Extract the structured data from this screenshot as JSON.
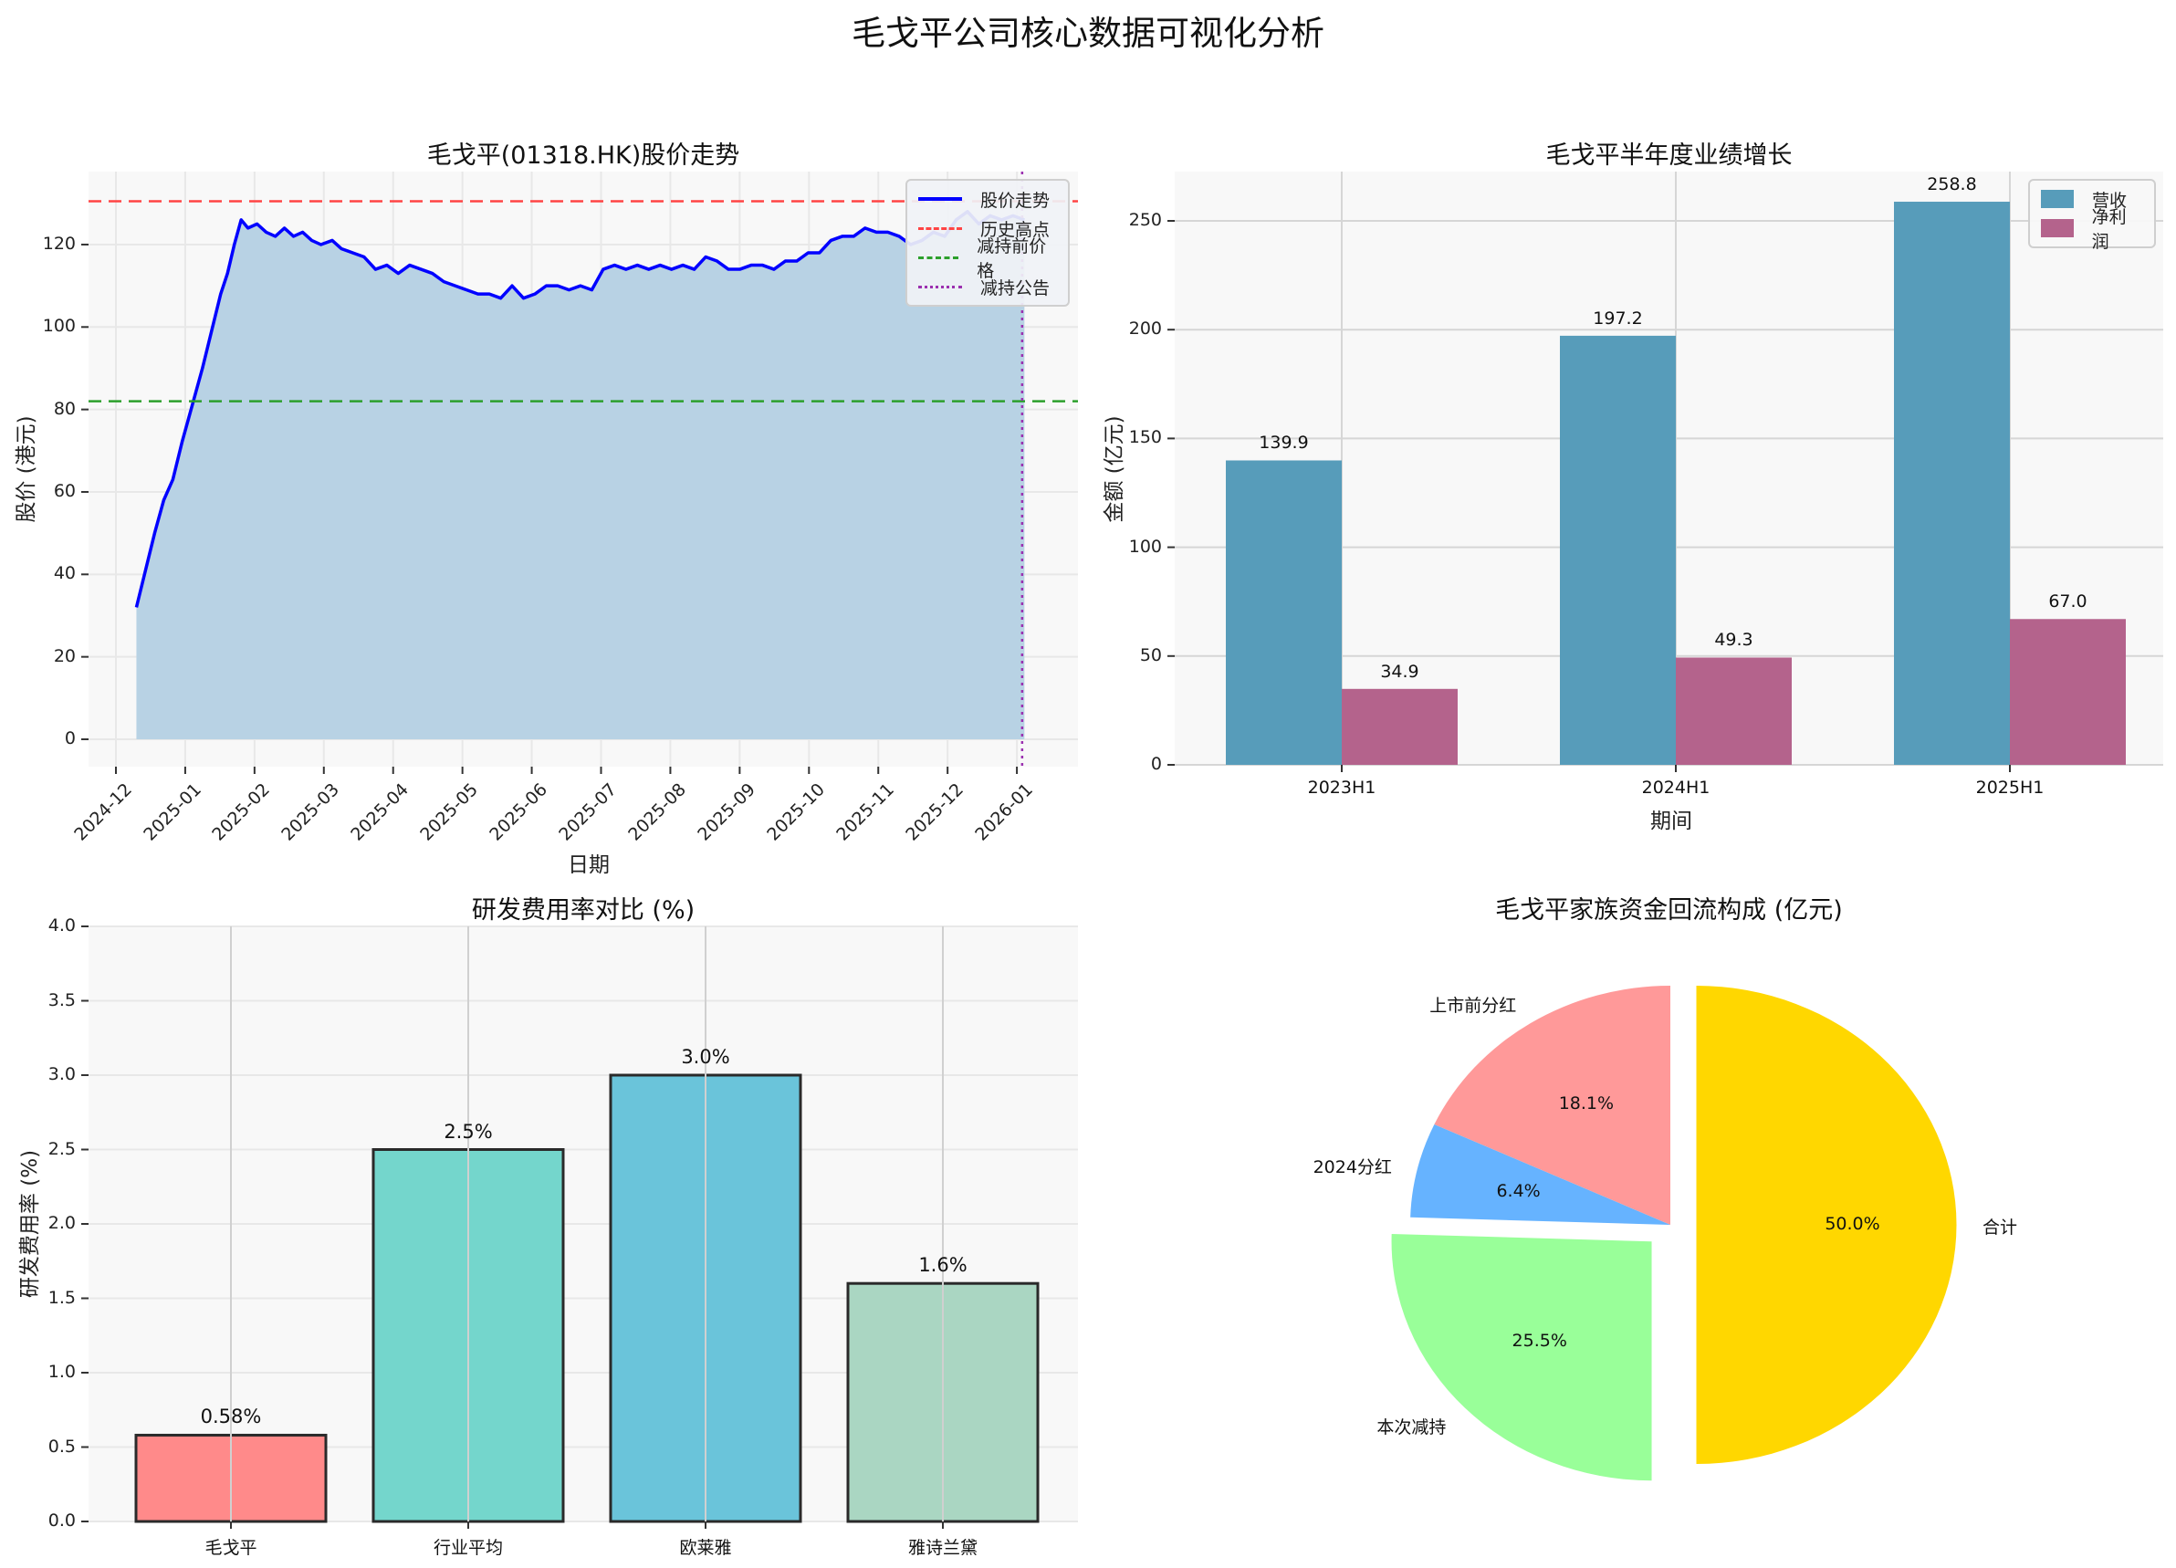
{
  "figure": {
    "title": "毛戈平公司核心数据可视化分析"
  },
  "chart_data": [
    {
      "type": "line",
      "title": "毛戈平(01318.HK)股价走势",
      "xlabel": "日期",
      "ylabel": "股价 (港元)",
      "x_tick_labels": [
        "2024-12",
        "2025-01",
        "2025-02",
        "2025-03",
        "2025-04",
        "2025-05",
        "2025-06",
        "2025-07",
        "2025-08",
        "2025-09",
        "2025-10",
        "2025-11",
        "2025-12",
        "2026-01"
      ],
      "y_ticks": [
        0,
        20,
        40,
        60,
        80,
        100,
        120
      ],
      "ylim": [
        -6,
        137
      ],
      "grid": true,
      "legend_position": "upper right",
      "legend": [
        "股价走势",
        "历史高点",
        "减持前价格",
        "减持公告"
      ],
      "series": [
        {
          "name": "股价走势",
          "color": "#0000ff",
          "fill": "#b8d2e4",
          "points": [
            [
              "2024-12-10",
              32
            ],
            [
              "2024-12-14",
              41
            ],
            [
              "2024-12-18",
              50
            ],
            [
              "2024-12-22",
              58
            ],
            [
              "2024-12-26",
              63
            ],
            [
              "2024-12-30",
              72
            ],
            [
              "2025-01-04",
              82
            ],
            [
              "2025-01-08",
              90
            ],
            [
              "2025-01-12",
              99
            ],
            [
              "2025-01-16",
              108
            ],
            [
              "2025-01-19",
              113
            ],
            [
              "2025-01-22",
              120
            ],
            [
              "2025-01-25",
              126
            ],
            [
              "2025-01-28",
              124
            ],
            [
              "2025-02-01",
              125
            ],
            [
              "2025-02-05",
              123
            ],
            [
              "2025-02-09",
              122
            ],
            [
              "2025-02-13",
              124
            ],
            [
              "2025-02-17",
              122
            ],
            [
              "2025-02-21",
              123
            ],
            [
              "2025-02-25",
              121
            ],
            [
              "2025-03-01",
              120
            ],
            [
              "2025-03-06",
              121
            ],
            [
              "2025-03-10",
              119
            ],
            [
              "2025-03-15",
              118
            ],
            [
              "2025-03-20",
              117
            ],
            [
              "2025-03-25",
              114
            ],
            [
              "2025-03-30",
              115
            ],
            [
              "2025-04-04",
              113
            ],
            [
              "2025-04-09",
              115
            ],
            [
              "2025-04-14",
              114
            ],
            [
              "2025-04-19",
              113
            ],
            [
              "2025-04-24",
              111
            ],
            [
              "2025-04-29",
              110
            ],
            [
              "2025-05-04",
              109
            ],
            [
              "2025-05-09",
              108
            ],
            [
              "2025-05-14",
              108
            ],
            [
              "2025-05-19",
              107
            ],
            [
              "2025-05-24",
              110
            ],
            [
              "2025-05-29",
              107
            ],
            [
              "2025-06-03",
              108
            ],
            [
              "2025-06-08",
              110
            ],
            [
              "2025-06-13",
              110
            ],
            [
              "2025-06-18",
              109
            ],
            [
              "2025-06-23",
              110
            ],
            [
              "2025-06-28",
              109
            ],
            [
              "2025-07-03",
              114
            ],
            [
              "2025-07-08",
              115
            ],
            [
              "2025-07-13",
              114
            ],
            [
              "2025-07-18",
              115
            ],
            [
              "2025-07-23",
              114
            ],
            [
              "2025-07-28",
              115
            ],
            [
              "2025-08-02",
              114
            ],
            [
              "2025-08-07",
              115
            ],
            [
              "2025-08-12",
              114
            ],
            [
              "2025-08-17",
              117
            ],
            [
              "2025-08-22",
              116
            ],
            [
              "2025-08-27",
              114
            ],
            [
              "2025-09-01",
              114
            ],
            [
              "2025-09-06",
              115
            ],
            [
              "2025-09-11",
              115
            ],
            [
              "2025-09-16",
              114
            ],
            [
              "2025-09-21",
              116
            ],
            [
              "2025-09-26",
              116
            ],
            [
              "2025-10-01",
              118
            ],
            [
              "2025-10-06",
              118
            ],
            [
              "2025-10-11",
              121
            ],
            [
              "2025-10-16",
              122
            ],
            [
              "2025-10-21",
              122
            ],
            [
              "2025-10-26",
              124
            ],
            [
              "2025-10-31",
              123
            ],
            [
              "2025-11-05",
              123
            ],
            [
              "2025-11-10",
              122
            ],
            [
              "2025-11-15",
              120
            ],
            [
              "2025-11-20",
              121
            ],
            [
              "2025-11-25",
              123
            ],
            [
              "2025-11-30",
              122
            ],
            [
              "2025-12-05",
              126
            ],
            [
              "2025-12-10",
              128
            ],
            [
              "2025-12-15",
              125
            ],
            [
              "2025-12-20",
              127
            ],
            [
              "2025-12-25",
              126
            ],
            [
              "2025-12-30",
              127
            ],
            [
              "2026-01-04",
              126
            ]
          ]
        }
      ],
      "reference_lines": [
        {
          "name": "历史高点",
          "orientation": "horizontal",
          "value": 130.5,
          "color": "#ff4444",
          "style": "dashed"
        },
        {
          "name": "减持前价格",
          "orientation": "horizontal",
          "value": 82,
          "color": "#2ca02c",
          "style": "dashed"
        },
        {
          "name": "减持公告",
          "orientation": "vertical",
          "value": "2026-01-03",
          "color": "#9b30b0",
          "style": "dotted"
        }
      ]
    },
    {
      "type": "bar",
      "title": "毛戈平半年度业绩增长",
      "xlabel": "期间",
      "ylabel": "金额 (亿元)",
      "categories": [
        "2023H1",
        "2024H1",
        "2025H1"
      ],
      "series": [
        {
          "name": "营收",
          "color": "#579cba",
          "values": [
            139.9,
            197.2,
            258.8
          ]
        },
        {
          "name": "净利润",
          "color": "#b4638c",
          "values": [
            34.9,
            49.3,
            67.0
          ]
        }
      ],
      "y_ticks": [
        0,
        50,
        100,
        150,
        200,
        250
      ],
      "ylim": [
        0,
        272
      ],
      "grid": true,
      "legend_position": "upper right"
    },
    {
      "type": "bar",
      "title": "研发费用率对比 (%)",
      "xlabel": "",
      "ylabel": "研发费用率 (%)",
      "categories": [
        "毛戈平",
        "行业平均",
        "欧莱雅",
        "雅诗兰黛"
      ],
      "values": [
        0.58,
        2.5,
        3.0,
        1.6
      ],
      "value_labels": [
        "0.58%",
        "2.5%",
        "3.0%",
        "1.6%"
      ],
      "colors": [
        "#ff8a8a",
        "#74d6cc",
        "#6ac4da",
        "#aad6c2"
      ],
      "y_ticks": [
        0.0,
        0.5,
        1.0,
        1.5,
        2.0,
        2.5,
        3.0,
        3.5,
        4.0
      ],
      "ylim": [
        0,
        4.0
      ],
      "grid": true
    },
    {
      "type": "pie",
      "title": "毛戈平家族资金回流构成 (亿元)",
      "labels": [
        "上市前分红",
        "2024分红",
        "本次减持",
        "合计"
      ],
      "percentages": [
        18.1,
        6.4,
        25.5,
        50.0
      ],
      "pct_labels": [
        "18.1%",
        "6.4%",
        "25.5%",
        "50.0%"
      ],
      "colors": [
        "#ff9999",
        "#66b3ff",
        "#99ff99",
        "#ffd700"
      ],
      "exploded": [
        "本次减持",
        "合计"
      ],
      "start_angle": 90
    }
  ]
}
